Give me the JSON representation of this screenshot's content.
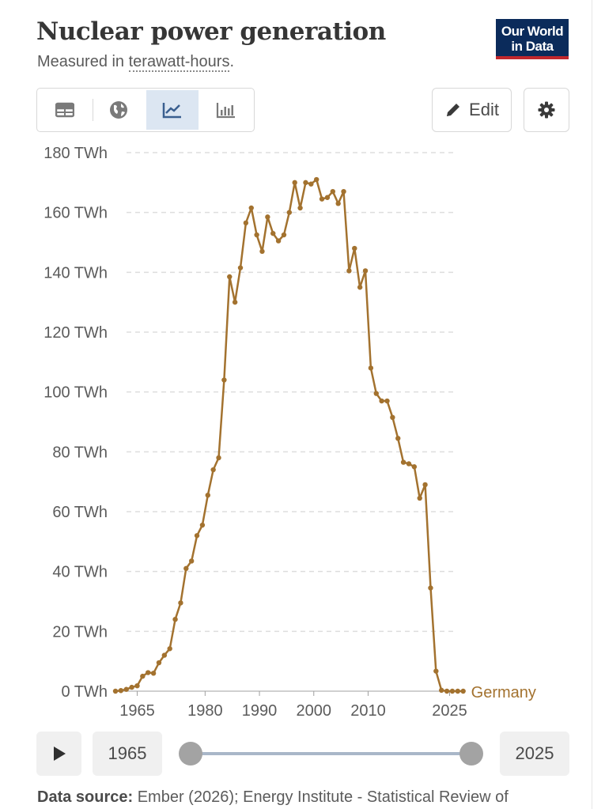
{
  "header": {
    "title": "Nuclear power generation",
    "subtitle_prefix": "Measured in ",
    "subtitle_link": "terawatt-hours",
    "subtitle_suffix": "."
  },
  "logo": {
    "line1": "Our World",
    "line2": "in Data"
  },
  "toolbar": {
    "tabs": [
      {
        "name": "table",
        "icon": "table-icon",
        "active": false
      },
      {
        "name": "map",
        "icon": "globe-icon",
        "active": false
      },
      {
        "name": "chart",
        "icon": "line-chart-icon",
        "active": true
      },
      {
        "name": "bar",
        "icon": "bar-chart-icon",
        "active": false
      }
    ],
    "edit_label": "Edit",
    "edit_icon": "pencil-icon",
    "settings_icon": "gear-icon"
  },
  "chart_data": {
    "type": "line",
    "title": "Nuclear power generation",
    "subtitle": "Measured in terawatt-hours.",
    "ylim": [
      0,
      180
    ],
    "xlim": [
      1961,
      2026
    ],
    "y_ticks": [
      0,
      20,
      40,
      60,
      80,
      100,
      120,
      140,
      160,
      180
    ],
    "y_tick_labels": [
      "0 TWh",
      "20 TWh",
      "40 TWh",
      "60 TWh",
      "80 TWh",
      "100 TWh",
      "120 TWh",
      "140 TWh",
      "160 TWh",
      "180 TWh"
    ],
    "x_tick_labels": [
      "1965",
      "1980",
      "1990",
      "2000",
      "2010",
      "2025"
    ],
    "grid": "horizontal-dashed",
    "series": [
      {
        "name": "Germany",
        "color": "#a3722f",
        "x": [
          1961,
          1962,
          1963,
          1964,
          1965,
          1966,
          1967,
          1968,
          1969,
          1970,
          1971,
          1972,
          1973,
          1974,
          1975,
          1976,
          1977,
          1978,
          1979,
          1980,
          1981,
          1982,
          1983,
          1984,
          1985,
          1986,
          1987,
          1988,
          1989,
          1990,
          1991,
          1992,
          1993,
          1994,
          1995,
          1996,
          1997,
          1998,
          1999,
          2000,
          2001,
          2002,
          2003,
          2004,
          2005,
          2006,
          2007,
          2008,
          2009,
          2010,
          2011,
          2012,
          2013,
          2014,
          2015,
          2016,
          2017,
          2018,
          2019,
          2020,
          2021,
          2022,
          2023,
          2024,
          2025
        ],
        "y": [
          0.0,
          0.2,
          0.6,
          1.3,
          1.8,
          5.0,
          6.2,
          6.0,
          9.5,
          12.0,
          14.2,
          24.0,
          29.5,
          41.0,
          43.5,
          52.0,
          55.5,
          65.5,
          74.0,
          78.0,
          104.0,
          138.5,
          130.0,
          141.5,
          156.5,
          161.5,
          152.5,
          147.0,
          158.5,
          153.0,
          150.5,
          152.5,
          160.0,
          170.0,
          161.5,
          170.0,
          169.5,
          171.0,
          164.5,
          165.0,
          167.0,
          163.0,
          167.0,
          140.5,
          148.0,
          135.0,
          140.5,
          108.0,
          99.5,
          97.0,
          97.0,
          91.5,
          84.5,
          76.5,
          76.0,
          75.0,
          64.5,
          69.0,
          34.5,
          6.7,
          0.3,
          0.0,
          0.0,
          0.0,
          0.0
        ]
      }
    ]
  },
  "timeline": {
    "start_year": "1965",
    "end_year": "2025",
    "play_icon": "play-icon"
  },
  "source": {
    "label": "Data source:",
    "text": " Ember (2026); Energy Institute - Statistical Review of"
  }
}
